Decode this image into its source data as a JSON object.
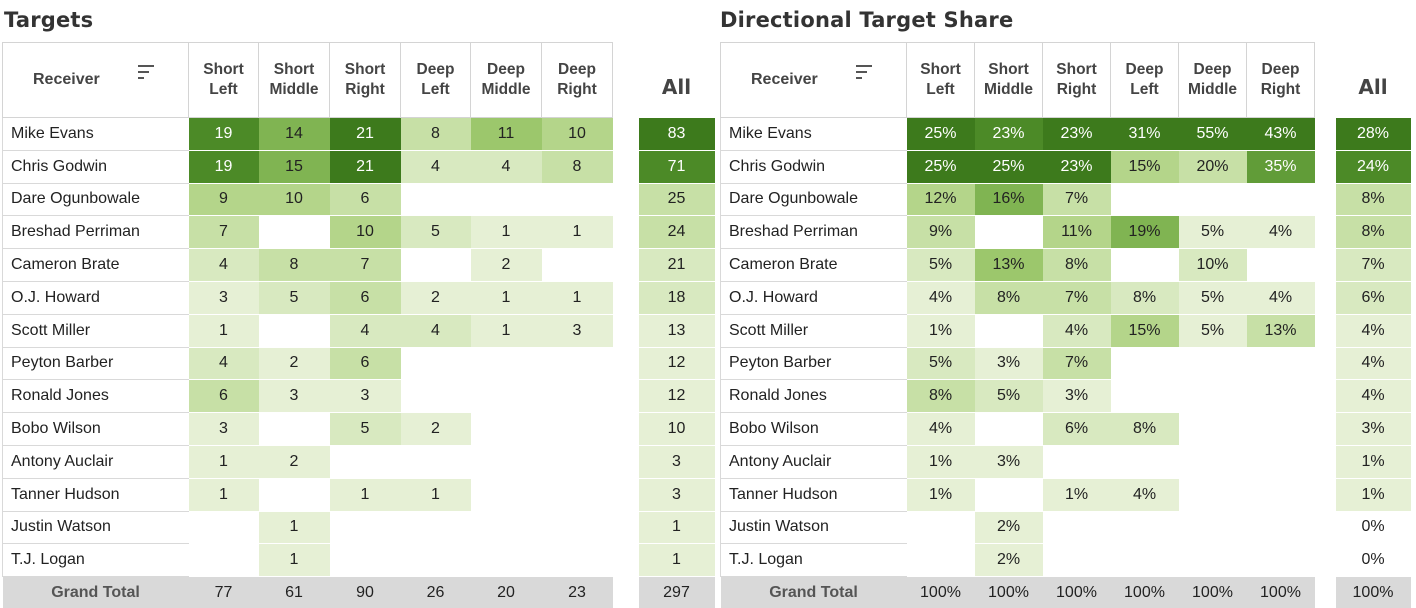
{
  "titles": {
    "left": "Targets",
    "right": "Directional Target Share"
  },
  "headers": {
    "receiver": "Receiver",
    "columns": [
      [
        "Short",
        "Left"
      ],
      [
        "Short",
        "Middle"
      ],
      [
        "Short",
        "Right"
      ],
      [
        "Deep",
        "Left"
      ],
      [
        "Deep",
        "Middle"
      ],
      [
        "Deep",
        "Right"
      ]
    ],
    "all": "All",
    "grand_total": "Grand Total"
  },
  "icons": {
    "sort": "sort-icon"
  },
  "receivers": [
    "Mike Evans",
    "Chris Godwin",
    "Dare Ogunbowale",
    "Breshad Perriman",
    "Cameron Brate",
    "O.J. Howard",
    "Scott Miller",
    "Peyton Barber",
    "Ronald Jones",
    "Bobo Wilson",
    "Antony Auclair",
    "Tanner Hudson",
    "Justin Watson",
    "T.J. Logan"
  ],
  "chart_data": [
    {
      "type": "table",
      "title": "Targets",
      "categories": [
        "Short Left",
        "Short Middle",
        "Short Right",
        "Deep Left",
        "Deep Middle",
        "Deep Right"
      ],
      "rows": [
        {
          "name": "Mike Evans",
          "values": [
            "19",
            "14",
            "21",
            "8",
            "11",
            "10"
          ],
          "all": "83"
        },
        {
          "name": "Chris Godwin",
          "values": [
            "19",
            "15",
            "21",
            "4",
            "4",
            "8"
          ],
          "all": "71"
        },
        {
          "name": "Dare Ogunbowale",
          "values": [
            "9",
            "10",
            "6",
            "",
            "",
            ""
          ],
          "all": "25"
        },
        {
          "name": "Breshad Perriman",
          "values": [
            "7",
            "",
            "10",
            "5",
            "1",
            "1"
          ],
          "all": "24"
        },
        {
          "name": "Cameron Brate",
          "values": [
            "4",
            "8",
            "7",
            "",
            "2",
            ""
          ],
          "all": "21"
        },
        {
          "name": "O.J. Howard",
          "values": [
            "3",
            "5",
            "6",
            "2",
            "1",
            "1"
          ],
          "all": "18"
        },
        {
          "name": "Scott Miller",
          "values": [
            "1",
            "",
            "4",
            "4",
            "1",
            "3"
          ],
          "all": "13"
        },
        {
          "name": "Peyton Barber",
          "values": [
            "4",
            "2",
            "6",
            "",
            "",
            ""
          ],
          "all": "12"
        },
        {
          "name": "Ronald Jones",
          "values": [
            "6",
            "3",
            "3",
            "",
            "",
            ""
          ],
          "all": "12"
        },
        {
          "name": "Bobo Wilson",
          "values": [
            "3",
            "",
            "5",
            "2",
            "",
            ""
          ],
          "all": "10"
        },
        {
          "name": "Antony Auclair",
          "values": [
            "1",
            "2",
            "",
            "",
            "",
            ""
          ],
          "all": "3"
        },
        {
          "name": "Tanner Hudson",
          "values": [
            "1",
            "",
            "1",
            "1",
            "",
            ""
          ],
          "all": "3"
        },
        {
          "name": "Justin Watson",
          "values": [
            "",
            "1",
            "",
            "",
            "",
            ""
          ],
          "all": "1"
        },
        {
          "name": "T.J. Logan",
          "values": [
            "",
            "1",
            "",
            "",
            "",
            ""
          ],
          "all": "1"
        }
      ],
      "totals": {
        "values": [
          "77",
          "61",
          "90",
          "26",
          "20",
          "23"
        ],
        "all": "297"
      }
    },
    {
      "type": "table",
      "title": "Directional Target Share",
      "categories": [
        "Short Left",
        "Short Middle",
        "Short Right",
        "Deep Left",
        "Deep Middle",
        "Deep Right"
      ],
      "rows": [
        {
          "name": "Mike Evans",
          "values": [
            "25%",
            "23%",
            "23%",
            "31%",
            "55%",
            "43%"
          ],
          "all": "28%"
        },
        {
          "name": "Chris Godwin",
          "values": [
            "25%",
            "25%",
            "23%",
            "15%",
            "20%",
            "35%"
          ],
          "all": "24%"
        },
        {
          "name": "Dare Ogunbowale",
          "values": [
            "12%",
            "16%",
            "7%",
            "",
            "",
            ""
          ],
          "all": "8%"
        },
        {
          "name": "Breshad Perriman",
          "values": [
            "9%",
            "",
            "11%",
            "19%",
            "5%",
            "4%"
          ],
          "all": "8%"
        },
        {
          "name": "Cameron Brate",
          "values": [
            "5%",
            "13%",
            "8%",
            "",
            "10%",
            ""
          ],
          "all": "7%"
        },
        {
          "name": "O.J. Howard",
          "values": [
            "4%",
            "8%",
            "7%",
            "8%",
            "5%",
            "4%"
          ],
          "all": "6%"
        },
        {
          "name": "Scott Miller",
          "values": [
            "1%",
            "",
            "4%",
            "15%",
            "5%",
            "13%"
          ],
          "all": "4%"
        },
        {
          "name": "Peyton Barber",
          "values": [
            "5%",
            "3%",
            "7%",
            "",
            "",
            ""
          ],
          "all": "4%"
        },
        {
          "name": "Ronald Jones",
          "values": [
            "8%",
            "5%",
            "3%",
            "",
            "",
            ""
          ],
          "all": "4%"
        },
        {
          "name": "Bobo Wilson",
          "values": [
            "4%",
            "",
            "6%",
            "8%",
            "",
            ""
          ],
          "all": "3%"
        },
        {
          "name": "Antony Auclair",
          "values": [
            "1%",
            "3%",
            "",
            "",
            "",
            ""
          ],
          "all": "1%"
        },
        {
          "name": "Tanner Hudson",
          "values": [
            "1%",
            "",
            "1%",
            "4%",
            "",
            ""
          ],
          "all": "1%"
        },
        {
          "name": "Justin Watson",
          "values": [
            "",
            "2%",
            "",
            "",
            "",
            ""
          ],
          "all": "0%"
        },
        {
          "name": "T.J. Logan",
          "values": [
            "",
            "2%",
            "",
            "",
            "",
            ""
          ],
          "all": "0%"
        }
      ],
      "totals": {
        "values": [
          "100%",
          "100%",
          "100%",
          "100%",
          "100%",
          "100%"
        ],
        "all": "100%"
      }
    }
  ]
}
